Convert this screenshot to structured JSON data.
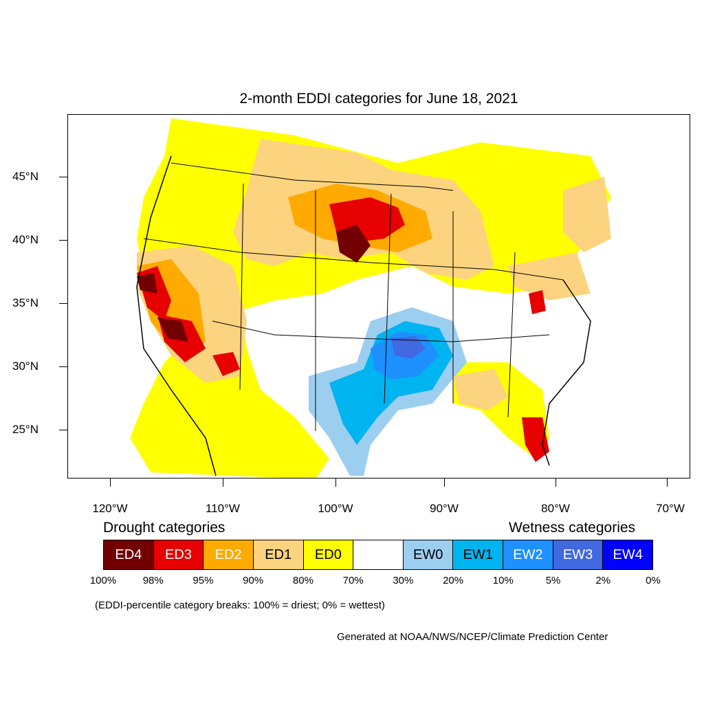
{
  "title": "2-month EDDI categories for June 18, 2021",
  "lat_labels": [
    "45°N",
    "40°N",
    "35°N",
    "30°N",
    "25°N"
  ],
  "lon_labels": [
    "120°W",
    "110°W",
    "100°W",
    "90°W",
    "80°W",
    "70°W"
  ],
  "legend": {
    "drought_heading": "Drought categories",
    "wetness_heading": "Wetness categories",
    "categories": [
      {
        "label": "ED4",
        "color": "#730000",
        "text_color": "#ffffff"
      },
      {
        "label": "ED3",
        "color": "#e60000",
        "text_color": "#ffffff"
      },
      {
        "label": "ED2",
        "color": "#ffaa00",
        "text_color": "#ffffff"
      },
      {
        "label": "ED1",
        "color": "#fcd37f",
        "text_color": "#000000"
      },
      {
        "label": "ED0",
        "color": "#ffff00",
        "text_color": "#000000"
      },
      {
        "label": "",
        "color": "#ffffff",
        "text_color": "#000000"
      },
      {
        "label": "EW0",
        "color": "#9ccef0",
        "text_color": "#000000"
      },
      {
        "label": "EW1",
        "color": "#00b4f0",
        "text_color": "#000000"
      },
      {
        "label": "EW2",
        "color": "#1e90ff",
        "text_color": "#ffffff"
      },
      {
        "label": "EW3",
        "color": "#4169e1",
        "text_color": "#ffffff"
      },
      {
        "label": "EW4",
        "color": "#0000ff",
        "text_color": "#ffffff"
      }
    ],
    "breaks": [
      "100%",
      "98%",
      "95%",
      "90%",
      "80%",
      "70%",
      "30%",
      "20%",
      "10%",
      "5%",
      "2%",
      "0%"
    ]
  },
  "note": "(EDDI-percentile category breaks: 100% = driest; 0% = wettest)",
  "credit": "Generated at NOAA/NWS/NCEP/Climate Prediction Center"
}
